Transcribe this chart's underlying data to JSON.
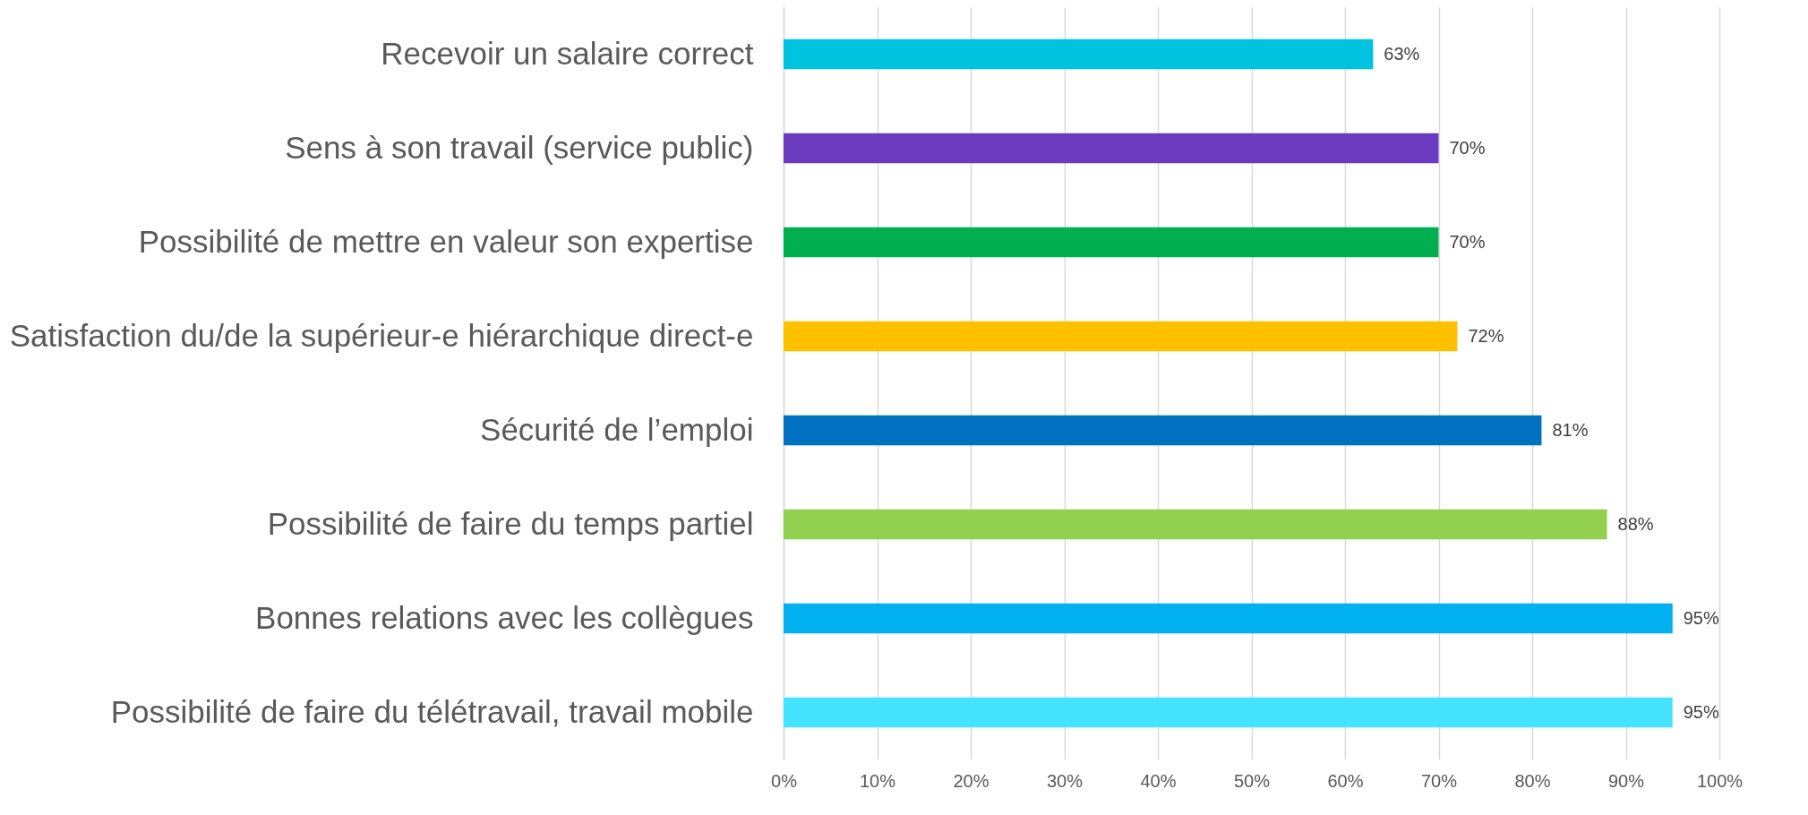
{
  "chart_data": {
    "type": "bar",
    "orientation": "horizontal",
    "categories": [
      "Recevoir un salaire correct",
      "Sens à son travail (service public)",
      "Possibilité de mettre en valeur son expertise",
      "Satisfaction du/de la supérieur-e hiérarchique direct-e",
      "Sécurité de l’emploi",
      "Possibilité de faire du temps partiel",
      "Bonnes relations avec les collègues",
      "Possibilité de faire du télétravail, travail mobile"
    ],
    "values": [
      63,
      70,
      70,
      72,
      81,
      88,
      95,
      95
    ],
    "value_labels": [
      "63%",
      "70%",
      "70%",
      "72%",
      "81%",
      "88%",
      "95%",
      "95%"
    ],
    "colors": [
      "#00c3e0",
      "#6a3bbf",
      "#00b050",
      "#ffc000",
      "#0070c0",
      "#92d050",
      "#00b0f0",
      "#44e4ff"
    ],
    "xlim": [
      0,
      100
    ],
    "xticks": [
      {
        "value": 0,
        "label": "0%"
      },
      {
        "value": 10,
        "label": "10%"
      },
      {
        "value": 20,
        "label": "20%"
      },
      {
        "value": 30,
        "label": "30%"
      },
      {
        "value": 40,
        "label": "40%"
      },
      {
        "value": 50,
        "label": "50%"
      },
      {
        "value": 60,
        "label": "60%"
      },
      {
        "value": 70,
        "label": "70%"
      },
      {
        "value": 80,
        "label": "80%"
      },
      {
        "value": 90,
        "label": "90%"
      },
      {
        "value": 100,
        "label": "100%"
      }
    ],
    "grid": "x"
  }
}
